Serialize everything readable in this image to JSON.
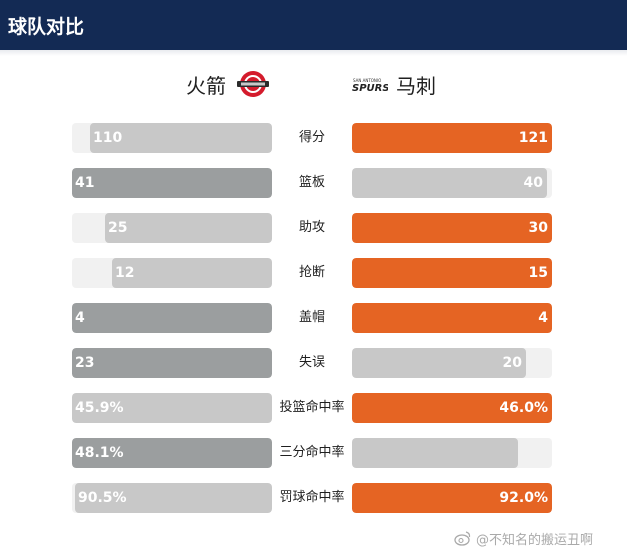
{
  "header": {
    "title": "球队对比"
  },
  "teams": {
    "home": {
      "name": "火箭",
      "logo": "rockets-logo"
    },
    "away": {
      "name": "马刺",
      "logo": "spurs-logo"
    }
  },
  "colors": {
    "header_bg": "#132a54",
    "winner": "#e56423",
    "loser_light": "#c8c8c8",
    "home_winner": "#9b9e9f",
    "track": "#f1f1f1"
  },
  "stats": [
    {
      "label": "得分",
      "home": "110",
      "away": "121",
      "home_frac": 0.91,
      "away_frac": 1.0,
      "leader": "away"
    },
    {
      "label": "篮板",
      "home": "41",
      "away": "40",
      "home_frac": 1.0,
      "away_frac": 0.975,
      "leader": "home"
    },
    {
      "label": "助攻",
      "home": "25",
      "away": "30",
      "home_frac": 0.833,
      "away_frac": 1.0,
      "leader": "away"
    },
    {
      "label": "抢断",
      "home": "12",
      "away": "15",
      "home_frac": 0.8,
      "away_frac": 1.0,
      "leader": "away"
    },
    {
      "label": "盖帽",
      "home": "4",
      "away": "4",
      "home_frac": 1.0,
      "away_frac": 1.0,
      "leader": "tie"
    },
    {
      "label": "失误",
      "home": "23",
      "away": "20",
      "home_frac": 1.0,
      "away_frac": 0.87,
      "leader": "home"
    },
    {
      "label": "投篮命中率",
      "home": "45.9%",
      "away": "46.0%",
      "home_frac": 1.0,
      "away_frac": 1.0,
      "leader": "away"
    },
    {
      "label": "三分命中率",
      "home": "48.1%",
      "away": "",
      "home_frac": 1.0,
      "away_frac": 0.83,
      "leader": "home"
    },
    {
      "label": "罚球命中率",
      "home": "90.5%",
      "away": "92.0%",
      "home_frac": 0.985,
      "away_frac": 1.0,
      "leader": "away"
    }
  ],
  "watermark": {
    "text": "@不知名的搬运丑啊",
    "icon": "weibo-icon"
  }
}
